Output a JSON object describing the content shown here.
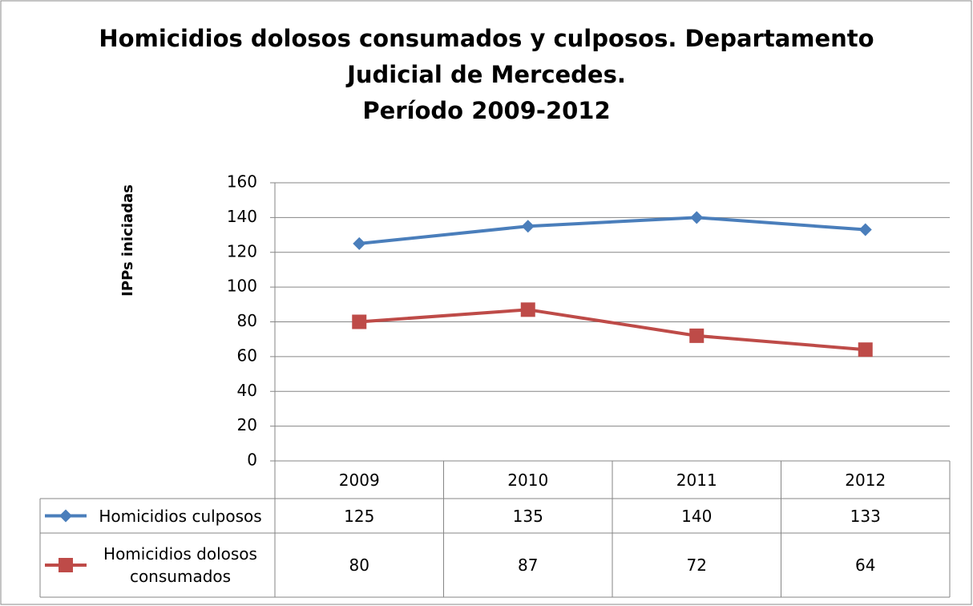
{
  "chart_data": {
    "type": "line",
    "title": [
      "Homicidios dolosos consumados y culposos. Departamento",
      "Judicial de Mercedes.",
      "Período 2009-2012"
    ],
    "y_label": "IPPs iniciadas",
    "categories": [
      "2009",
      "2010",
      "2011",
      "2012"
    ],
    "series": [
      {
        "name": "Homicidios culposos",
        "color": "#4a7ebb",
        "marker": "diamond",
        "values": [
          125,
          135,
          140,
          133
        ]
      },
      {
        "name": "Homicidios dolosos consumados",
        "color": "#be4b48",
        "marker": "square",
        "values": [
          80,
          87,
          72,
          64
        ]
      }
    ],
    "ylim": [
      0,
      160
    ],
    "yticks": [
      0,
      20,
      40,
      60,
      80,
      100,
      120,
      140,
      160
    ],
    "grid": true,
    "data_table": true
  }
}
